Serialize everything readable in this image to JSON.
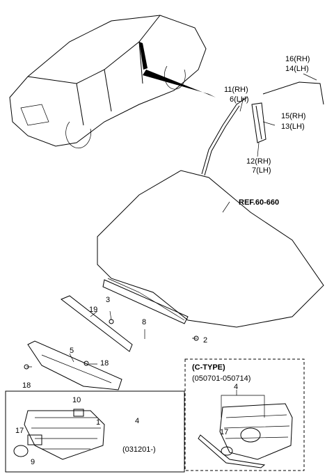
{
  "labels": [
    "16(RH)",
    "14(LH)",
    "11(RH)",
    "6(LH)",
    "15(RH)",
    "13(LH)",
    "12(RH)",
    "7(LH)",
    "REF.60-660",
    "19",
    "3",
    "8",
    "2",
    "5",
    "18",
    "18",
    "10",
    "1",
    "17",
    "9",
    "4",
    "(031201-)",
    "(C-TYPE)",
    "(050701-050714)",
    "4",
    "17"
  ]
}
